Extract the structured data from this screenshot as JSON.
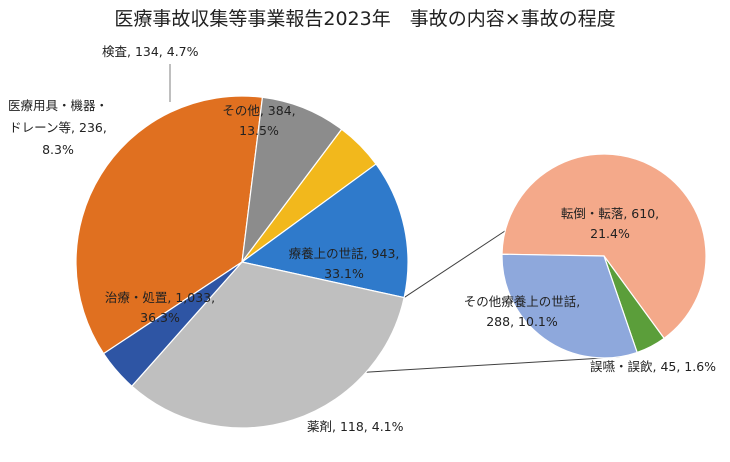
{
  "chart_data": {
    "type": "pie",
    "title": "医療事故収集等事業報告2023年　事故の内容×事故の程度",
    "slices": [
      {
        "name": "治療・処置",
        "value": 1033,
        "percent": "36.3%",
        "color": "#E07020",
        "label_line1": "治療・処置, 1,033,",
        "label_line2": "36.3%"
      },
      {
        "name": "医療用具・機器・ドレーン等",
        "value": 236,
        "percent": "8.3%",
        "color": "#8C8C8C",
        "label_line1": "医療用具・機器・",
        "label_line2": "ドレーン等, 236,",
        "label_line3": "8.3%"
      },
      {
        "name": "検査",
        "value": 134,
        "percent": "4.7%",
        "color": "#F2B81C",
        "label_line1": "検査, 134, 4.7%"
      },
      {
        "name": "その他",
        "value": 384,
        "percent": "13.5%",
        "color": "#2F7ACB",
        "label_line1": "その他, 384,",
        "label_line2": "13.5%"
      },
      {
        "name": "療養上の世話",
        "value": 943,
        "percent": "33.1%",
        "color": "#BFBFBF",
        "label_line1": "療養上の世話, 943,",
        "label_line2": "33.1%"
      },
      {
        "name": "薬剤",
        "value": 118,
        "percent": "4.1%",
        "color": "#2E55A4",
        "label_line1": "薬剤, 118, 4.1%"
      }
    ],
    "breakout": {
      "of": "療養上の世話",
      "slices": [
        {
          "name": "転倒・転落",
          "value": 610,
          "percent": "21.4%",
          "color": "#F4A98A",
          "label_line1": "転倒・転落, 610,",
          "label_line2": "21.4%"
        },
        {
          "name": "誤嚥・誤飲",
          "value": 45,
          "percent": "1.6%",
          "color": "#5B9E3A",
          "label_line1": "誤嚥・誤飲, 45, 1.6%"
        },
        {
          "name": "その他療養上の世話",
          "value": 288,
          "percent": "10.1%",
          "color": "#8EA8DC",
          "label_line1": "その他療養上の世話,",
          "label_line2": "288, 10.1%"
        }
      ]
    }
  }
}
